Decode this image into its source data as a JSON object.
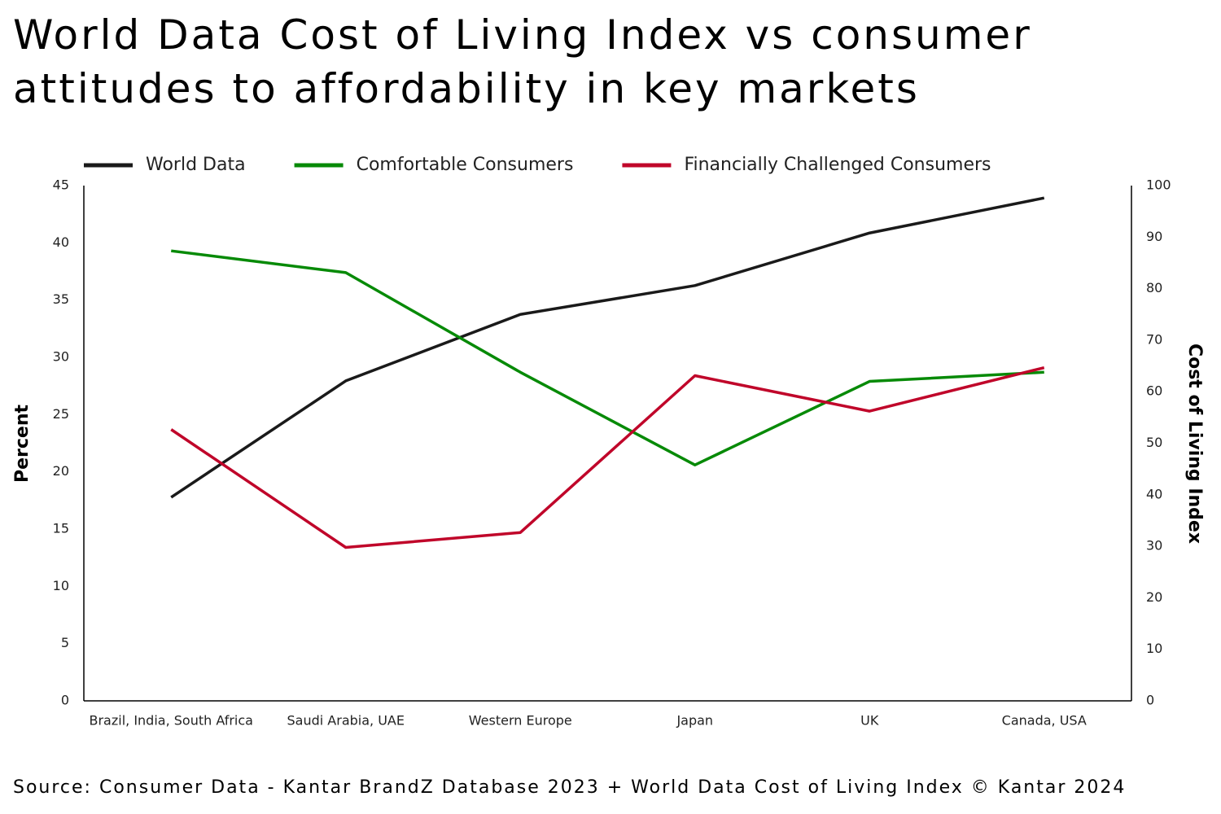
{
  "chart_data": {
    "type": "line",
    "title": "World Data Cost of Living Index vs consumer attitudes to affordability in key markets",
    "categories": [
      "Brazil, India, South Africa",
      "Saudi Arabia, UAE",
      "Western Europe",
      "Japan",
      "UK",
      "Canada, USA"
    ],
    "series": [
      {
        "name": "World Data",
        "color": "#1a1a1a",
        "axis": "y2",
        "values": [
          39.5,
          62.1,
          75.0,
          80.6,
          90.8,
          97.6
        ]
      },
      {
        "name": "Comfortable Consumers",
        "color": "#078a07",
        "values": [
          39.3,
          37.4,
          28.7,
          20.6,
          27.9,
          28.7
        ]
      },
      {
        "name": "Financially Challenged Consumers",
        "color": "#c0062a",
        "values": [
          23.7,
          13.4,
          14.7,
          28.4,
          25.3,
          29.1
        ]
      }
    ],
    "ylabel": "Percent",
    "y2label": "Cost of Living Index",
    "ylim": [
      0,
      45
    ],
    "yticks": [
      0,
      5,
      10,
      15,
      20,
      25,
      30,
      35,
      40,
      45
    ],
    "y2lim": [
      0,
      100
    ],
    "y2ticks": [
      0,
      10,
      20,
      30,
      40,
      50,
      60,
      70,
      80,
      90,
      100
    ],
    "grid": false,
    "legend": "top",
    "source": "Source: Consumer Data - Kantar BrandZ Database 2023 + World Data Cost of Living Index © Kantar 2024"
  }
}
